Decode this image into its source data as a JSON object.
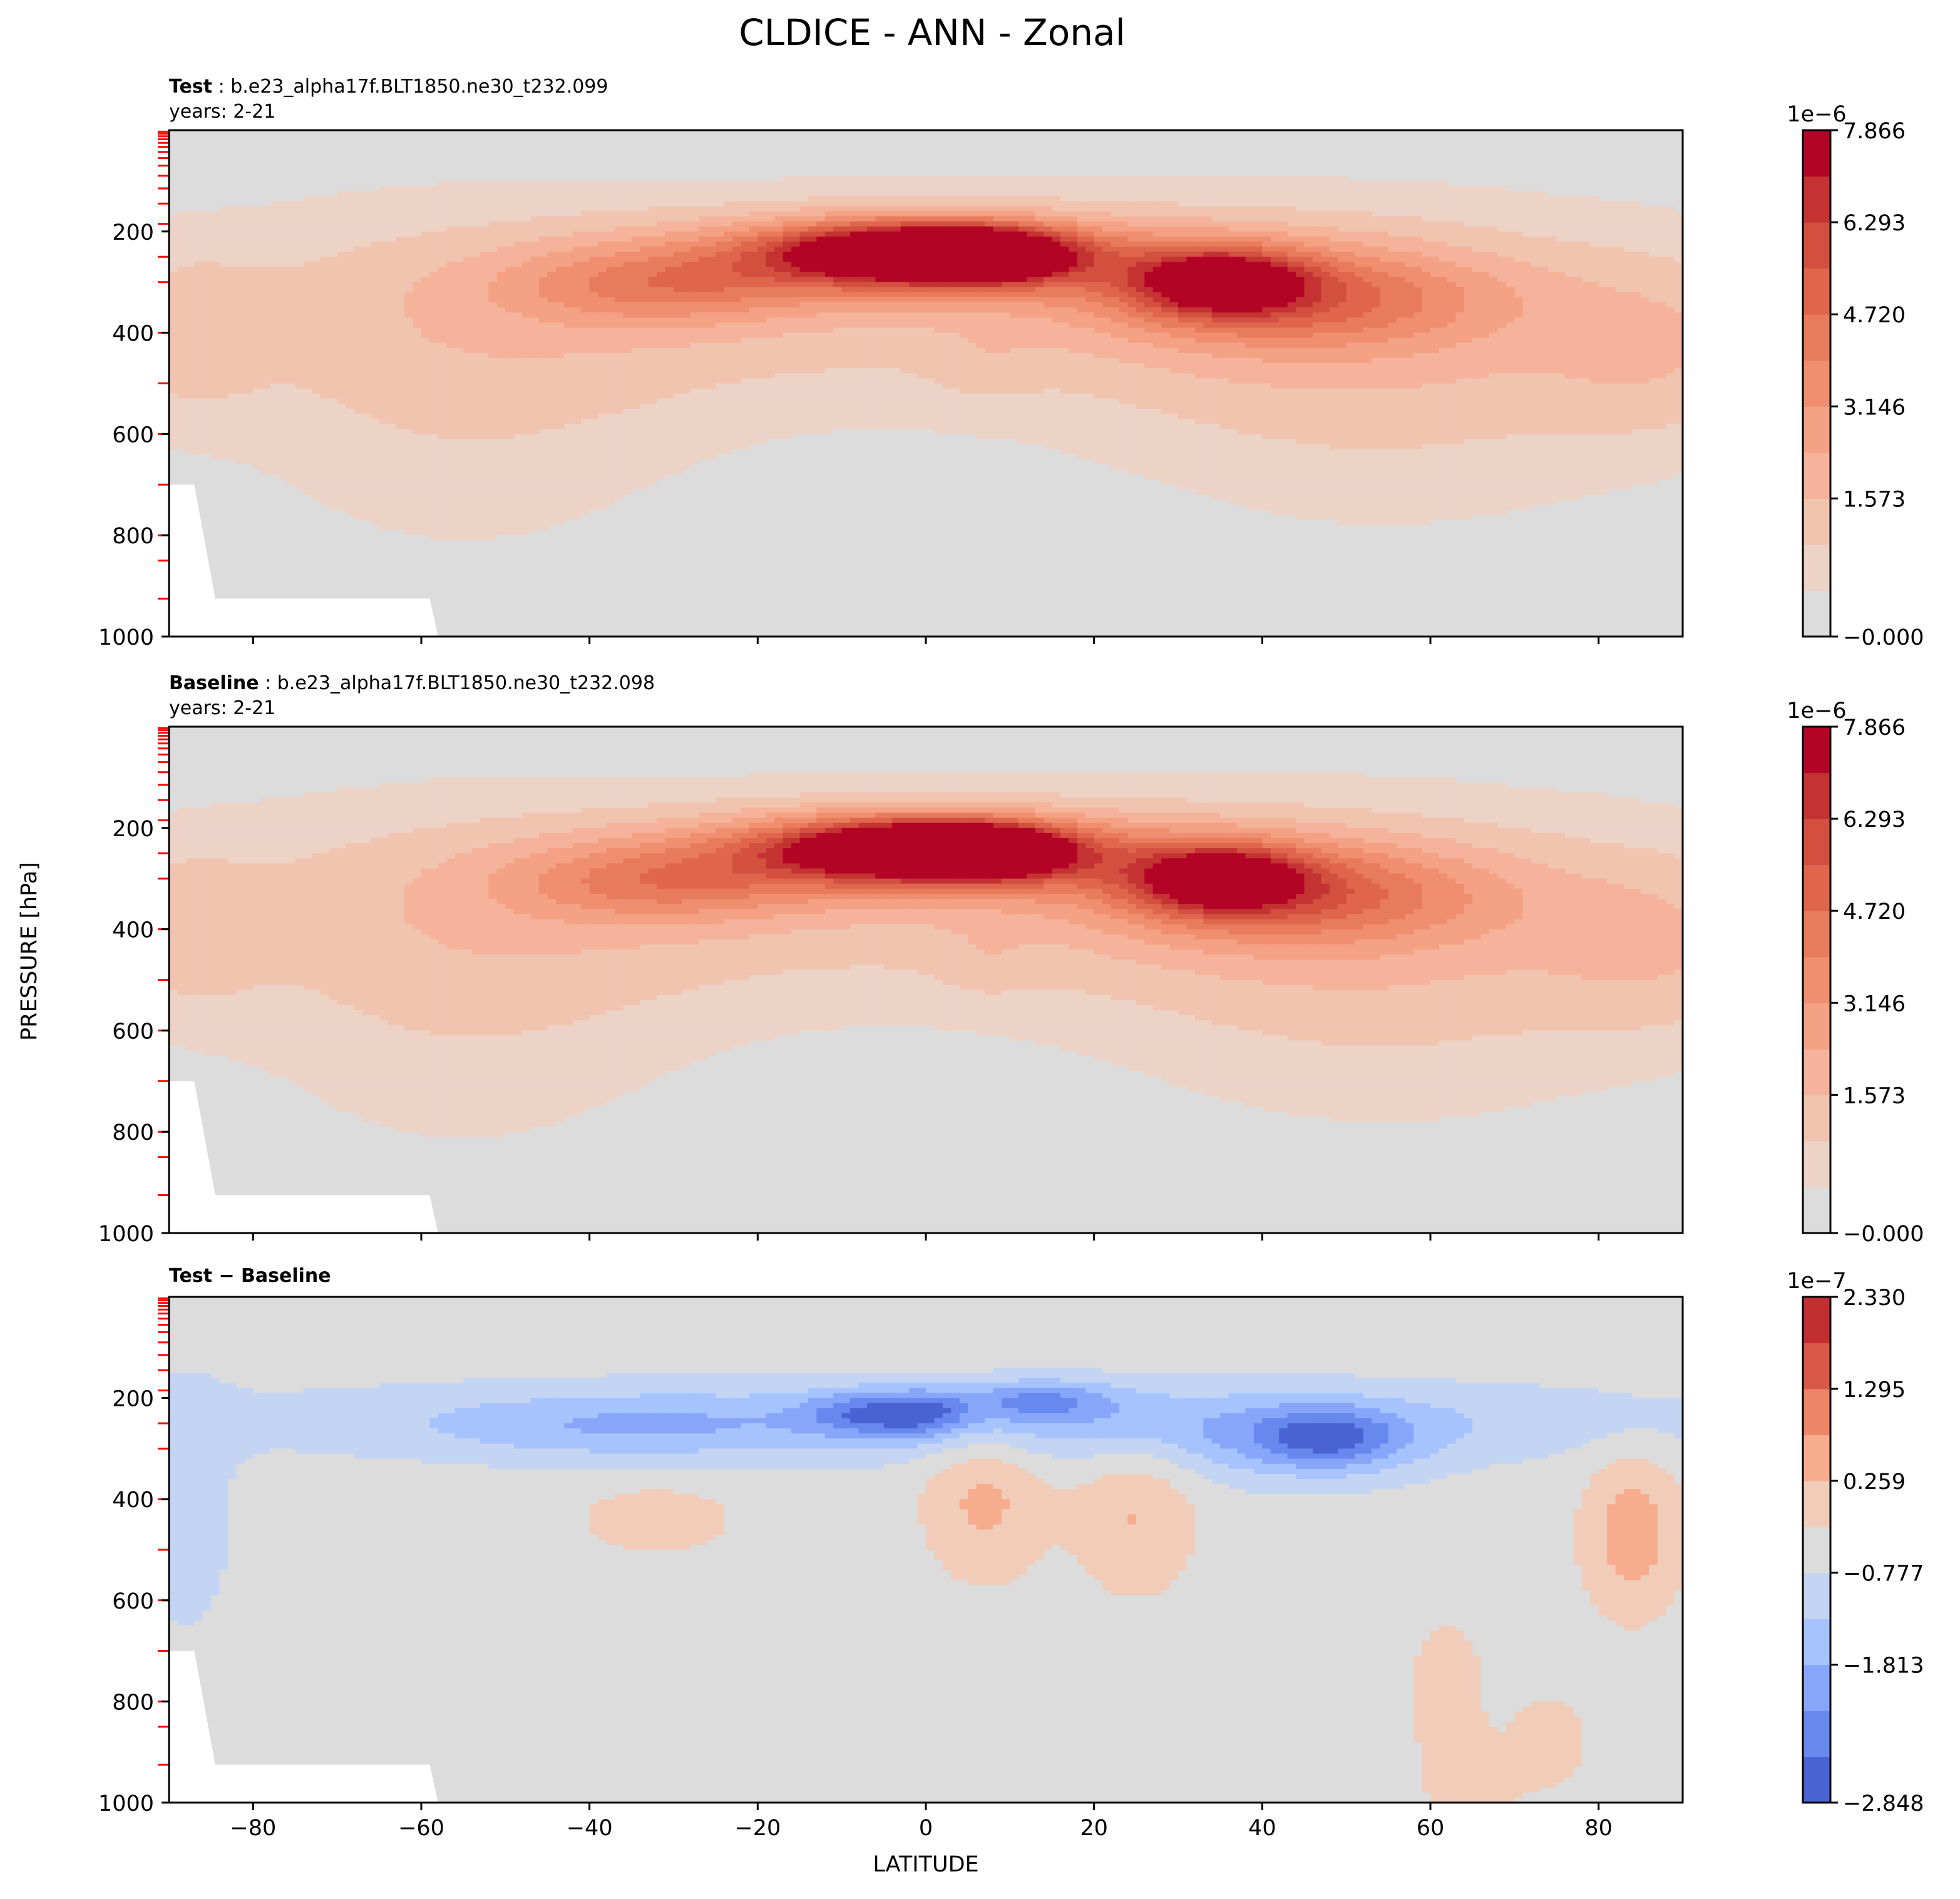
{
  "figure": {
    "title": "CLDICE - ANN - Zonal"
  },
  "chart_data": [
    {
      "type": "heatmap",
      "panel": "test",
      "label_bold": "Test",
      "label_rest": " : b.e23_alpha17f.BLT1850.ne30_t232.099",
      "years": "years: 2-21",
      "xlabel": "",
      "ylabel": "PRESSURE [hPa]",
      "xlim": [
        -90,
        90
      ],
      "ylim": [
        1000,
        0
      ],
      "y_ticks": [
        "200",
        "400",
        "600",
        "800",
        "1000"
      ],
      "x_ticks": [],
      "colorbar": {
        "exponent": "1e−6",
        "scale": 1e-06,
        "levels_range": [
          0.0,
          8.653
        ],
        "tick_labels": [
          "7.866",
          "6.293",
          "4.720",
          "3.146",
          "1.573",
          "−0.000"
        ],
        "colors": [
          "#dddcdc",
          "#ecd3c6",
          "#f1c4b0",
          "#f4b39a",
          "#f4a184",
          "#f08f6f",
          "#e97b5d",
          "#df664d",
          "#d3503f",
          "#c43232",
          "#b40426"
        ]
      },
      "features": [
        {
          "kind": "max",
          "lat": 7,
          "p": 250,
          "value": 8.3
        },
        {
          "kind": "max",
          "lat": -5,
          "p": 240,
          "value": 7.0
        },
        {
          "kind": "max",
          "lat": 35,
          "p": 300,
          "value": 6.5
        },
        {
          "kind": "max",
          "lat": -30,
          "p": 300,
          "value": 2.8
        }
      ]
    },
    {
      "type": "heatmap",
      "panel": "baseline",
      "label_bold": "Baseline",
      "label_rest": " : b.e23_alpha17f.BLT1850.ne30_t232.098",
      "years": "years: 2-21",
      "xlabel": "",
      "ylabel": "PRESSURE [hPa]",
      "xlim": [
        -90,
        90
      ],
      "ylim": [
        1000,
        0
      ],
      "y_ticks": [
        "200",
        "400",
        "600",
        "800",
        "1000"
      ],
      "x_ticks": [],
      "colorbar": {
        "exponent": "1e−6",
        "scale": 1e-06,
        "levels_range": [
          0.0,
          8.653
        ],
        "tick_labels": [
          "7.866",
          "6.293",
          "4.720",
          "3.146",
          "1.573",
          "−0.000"
        ],
        "colors": [
          "#dddcdc",
          "#ecd3c6",
          "#f1c4b0",
          "#f4b39a",
          "#f4a184",
          "#f08f6f",
          "#e97b5d",
          "#df664d",
          "#d3503f",
          "#c43232",
          "#b40426"
        ]
      },
      "features": [
        {
          "kind": "max",
          "lat": 7,
          "p": 250,
          "value": 8.4
        },
        {
          "kind": "max",
          "lat": -5,
          "p": 240,
          "value": 7.1
        },
        {
          "kind": "max",
          "lat": 35,
          "p": 300,
          "value": 6.6
        },
        {
          "kind": "max",
          "lat": -30,
          "p": 300,
          "value": 2.9
        }
      ]
    },
    {
      "type": "heatmap",
      "panel": "difference",
      "label_bold": "Test − Baseline",
      "label_rest": "",
      "years": "",
      "xlabel": "LATITUDE",
      "ylabel": "PRESSURE [hPa]",
      "xlim": [
        -90,
        90
      ],
      "ylim": [
        1000,
        0
      ],
      "y_ticks": [
        "200",
        "400",
        "600",
        "800",
        "1000"
      ],
      "x_ticks": [
        "−80",
        "−60",
        "−40",
        "−20",
        "0",
        "20",
        "40",
        "60",
        "80"
      ],
      "colorbar": {
        "exponent": "1e−7",
        "scale": 1e-07,
        "levels_range": [
          -2.848,
          2.848
        ],
        "tick_labels": [
          "2.330",
          "1.295",
          "0.259",
          "−0.777",
          "−1.813",
          "−2.848"
        ],
        "colors": [
          "#4a63d3",
          "#6788ee",
          "#87a6fa",
          "#a6c3fd",
          "#c4d5f3",
          "#dcdcdc",
          "#f1cdb9",
          "#f7ac8e",
          "#ee8468",
          "#d95847",
          "#c32e31"
        ]
      },
      "features": [
        {
          "kind": "min",
          "lat": -7,
          "p": 230,
          "value": -2.5
        },
        {
          "kind": "min",
          "lat": 0,
          "p": 230,
          "value": -2.2
        },
        {
          "kind": "min",
          "lat": 13,
          "p": 200,
          "value": -2.0
        },
        {
          "kind": "min",
          "lat": 48,
          "p": 280,
          "value": -2.4
        },
        {
          "kind": "max",
          "lat": 83,
          "p": 440,
          "value": 1.0
        }
      ]
    }
  ]
}
